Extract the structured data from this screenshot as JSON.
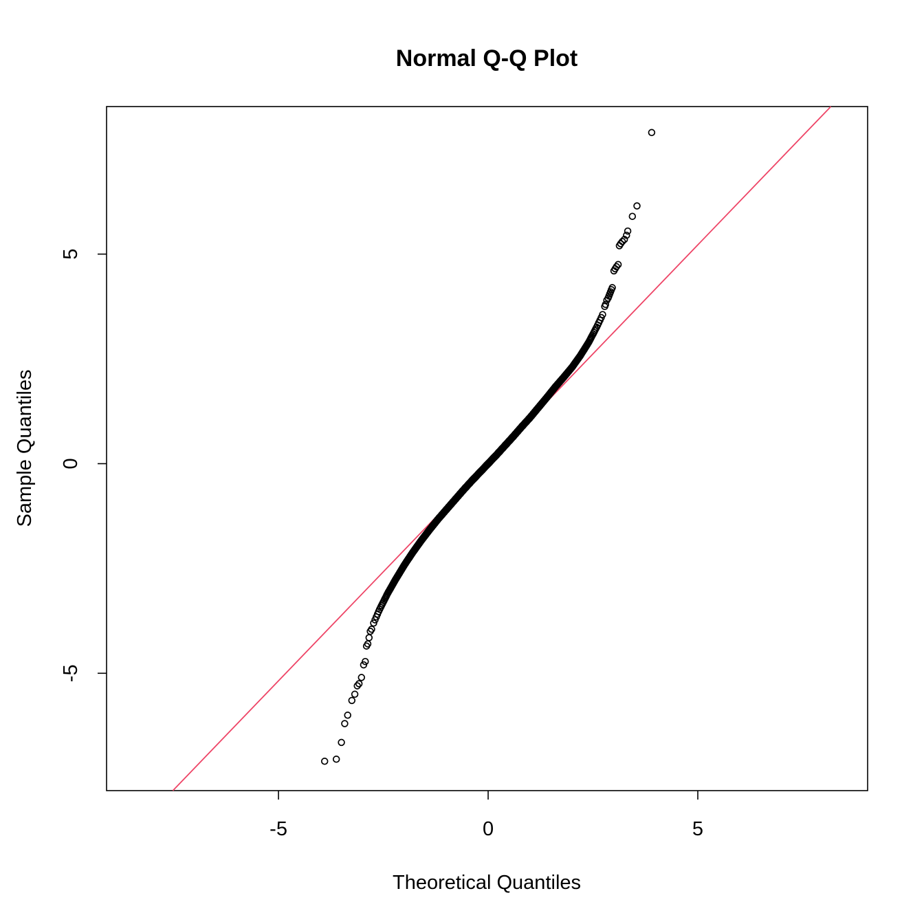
{
  "chart_data": {
    "type": "scatter",
    "title": "Normal Q-Q Plot",
    "xlabel": "Theoretical Quantiles",
    "ylabel": "Sample Quantiles",
    "xlim": [
      -9.1,
      9.05
    ],
    "ylim": [
      -7.8,
      8.52
    ],
    "x_ticks": [
      "-5",
      "0",
      "5"
    ],
    "x_tick_values": [
      -5,
      0,
      5
    ],
    "y_ticks": [
      "-5",
      "0",
      "5"
    ],
    "y_tick_values": [
      -5,
      0,
      5
    ],
    "grid": false,
    "legend": null,
    "marker": "open-circle",
    "point_color": "#000000",
    "background": "#ffffff",
    "n_points": 3000,
    "reference_line": {
      "slope": 1.04,
      "intercept": 0.02,
      "color": "#ee4466"
    },
    "curve_anchors": [
      [
        -2.75,
        -3.85
      ],
      [
        -2.6,
        -3.5
      ],
      [
        -2.4,
        -3.1
      ],
      [
        -2.2,
        -2.75
      ],
      [
        -2.0,
        -2.42
      ],
      [
        -1.8,
        -2.12
      ],
      [
        -1.6,
        -1.84
      ],
      [
        -1.4,
        -1.58
      ],
      [
        -1.2,
        -1.33
      ],
      [
        -1.0,
        -1.1
      ],
      [
        -0.8,
        -0.87
      ],
      [
        -0.6,
        -0.64
      ],
      [
        -0.4,
        -0.42
      ],
      [
        -0.2,
        -0.21
      ],
      [
        0,
        0
      ],
      [
        0.2,
        0.21
      ],
      [
        0.4,
        0.43
      ],
      [
        0.6,
        0.65
      ],
      [
        0.8,
        0.88
      ],
      [
        1.0,
        1.1
      ],
      [
        1.2,
        1.34
      ],
      [
        1.4,
        1.58
      ],
      [
        1.6,
        1.83
      ],
      [
        1.8,
        2.06
      ],
      [
        2.0,
        2.3
      ],
      [
        2.2,
        2.58
      ],
      [
        2.4,
        2.9
      ],
      [
        2.6,
        3.28
      ],
      [
        2.75,
        3.6
      ]
    ],
    "lower_tail_points": [
      [
        -3.9,
        -7.1
      ],
      [
        -3.62,
        -7.05
      ],
      [
        -3.5,
        -6.65
      ],
      [
        -3.42,
        -6.2
      ],
      [
        -3.35,
        -6.0
      ],
      [
        -3.25,
        -5.65
      ],
      [
        -3.18,
        -5.5
      ],
      [
        -3.12,
        -5.3
      ],
      [
        -3.08,
        -5.25
      ],
      [
        -3.02,
        -5.1
      ],
      [
        -2.97,
        -4.8
      ],
      [
        -2.93,
        -4.72
      ],
      [
        -2.9,
        -4.35
      ],
      [
        -2.87,
        -4.3
      ],
      [
        -2.84,
        -4.15
      ],
      [
        -2.81,
        -4.0
      ],
      [
        -2.78,
        -3.95
      ]
    ],
    "upper_tail_points": [
      [
        2.78,
        3.75
      ],
      [
        2.8,
        3.8
      ],
      [
        2.83,
        3.9
      ],
      [
        2.86,
        3.95
      ],
      [
        2.88,
        4.0
      ],
      [
        2.9,
        4.05
      ],
      [
        2.92,
        4.1
      ],
      [
        2.94,
        4.15
      ],
      [
        2.96,
        4.2
      ],
      [
        3.0,
        4.6
      ],
      [
        3.03,
        4.65
      ],
      [
        3.06,
        4.7
      ],
      [
        3.1,
        4.75
      ],
      [
        3.13,
        5.2
      ],
      [
        3.16,
        5.25
      ],
      [
        3.2,
        5.3
      ],
      [
        3.25,
        5.35
      ],
      [
        3.3,
        5.45
      ],
      [
        3.33,
        5.55
      ],
      [
        3.44,
        5.9
      ],
      [
        3.55,
        6.15
      ],
      [
        3.9,
        7.9
      ]
    ]
  }
}
